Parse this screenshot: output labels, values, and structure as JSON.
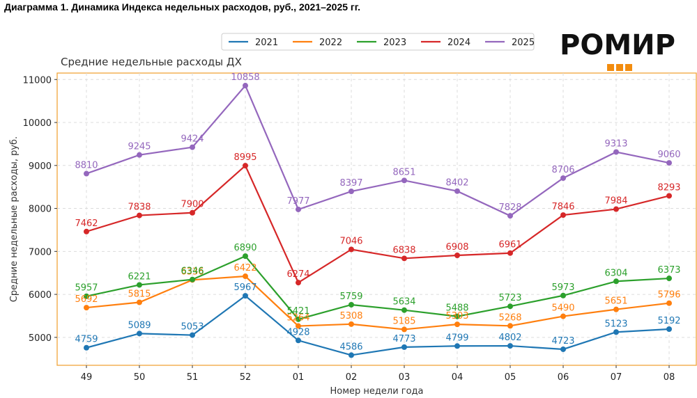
{
  "document_title": "Диаграмма 1. Динамика Индекса недельных расходов, руб., 2021–2025 гг.",
  "logo_text": "РОМИР",
  "colors": {
    "frame": "#f0a43a",
    "grid": "#dcdcdc",
    "logo_squares": "#f28c0f"
  },
  "chart_data": {
    "type": "line",
    "title": "Средние недельные расходы ДХ",
    "xlabel": "Номер недели года",
    "ylabel": "Средние недельные расходы, руб.",
    "categories": [
      "49",
      "50",
      "51",
      "52",
      "01",
      "02",
      "03",
      "04",
      "05",
      "06",
      "07",
      "08"
    ],
    "ylim": [
      4350,
      11150
    ],
    "yticks": [
      5000,
      6000,
      7000,
      8000,
      9000,
      10000,
      11000
    ],
    "grid": true,
    "legend_position": "top",
    "series": [
      {
        "name": "2021",
        "color": "#1f77b4",
        "values": [
          4759,
          5089,
          5053,
          5967,
          4928,
          4586,
          4773,
          4799,
          4802,
          4723,
          5123,
          5192
        ]
      },
      {
        "name": "2022",
        "color": "#ff7f0e",
        "values": [
          5692,
          5815,
          6336,
          6422,
          5264,
          5308,
          5185,
          5303,
          5268,
          5490,
          5651,
          5796
        ]
      },
      {
        "name": "2023",
        "color": "#2ca02c",
        "values": [
          5957,
          6221,
          6346,
          6890,
          5421,
          5759,
          5634,
          5488,
          5723,
          5973,
          6304,
          6373
        ]
      },
      {
        "name": "2024",
        "color": "#d62728",
        "values": [
          7462,
          7838,
          7900,
          8995,
          6274,
          7046,
          6838,
          6908,
          6961,
          7846,
          7984,
          8293
        ]
      },
      {
        "name": "2025",
        "color": "#9467bd",
        "values": [
          8810,
          9245,
          9424,
          10858,
          7977,
          8397,
          8651,
          8402,
          7828,
          8706,
          9313,
          9060
        ]
      }
    ]
  }
}
